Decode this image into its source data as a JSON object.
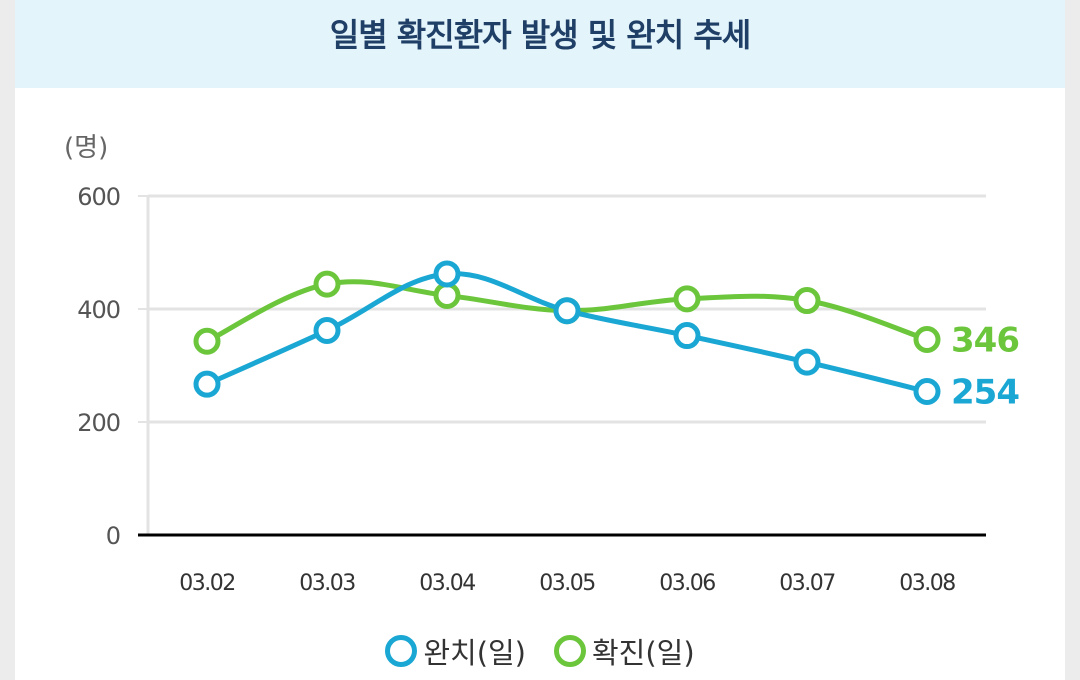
{
  "colors": {
    "series_1": "#1aa7d3",
    "series_2": "#6cc63c",
    "header_bg": "#e3f4fb",
    "title": "#1f3f66",
    "grid": "#e3e3e3",
    "axis": "#000000"
  },
  "chart_data": {
    "type": "line",
    "title": "일별 확진환자 발생 및 완치 추세",
    "ylabel": "(명)",
    "xlabel": "",
    "ylim": [
      0,
      600
    ],
    "yticks": [
      0,
      200,
      400,
      600
    ],
    "grid": true,
    "legend_position": "bottom-center",
    "categories": [
      "03.02",
      "03.03",
      "03.04",
      "03.05",
      "03.06",
      "03.07",
      "03.08"
    ],
    "series": [
      {
        "name": "완치(일)",
        "values": [
          267,
          362,
          462,
          397,
          353,
          306,
          254
        ],
        "end_label": "254"
      },
      {
        "name": "확진(일)",
        "values": [
          343,
          444,
          424,
          397,
          418,
          415,
          346
        ],
        "end_label": "346"
      }
    ]
  }
}
